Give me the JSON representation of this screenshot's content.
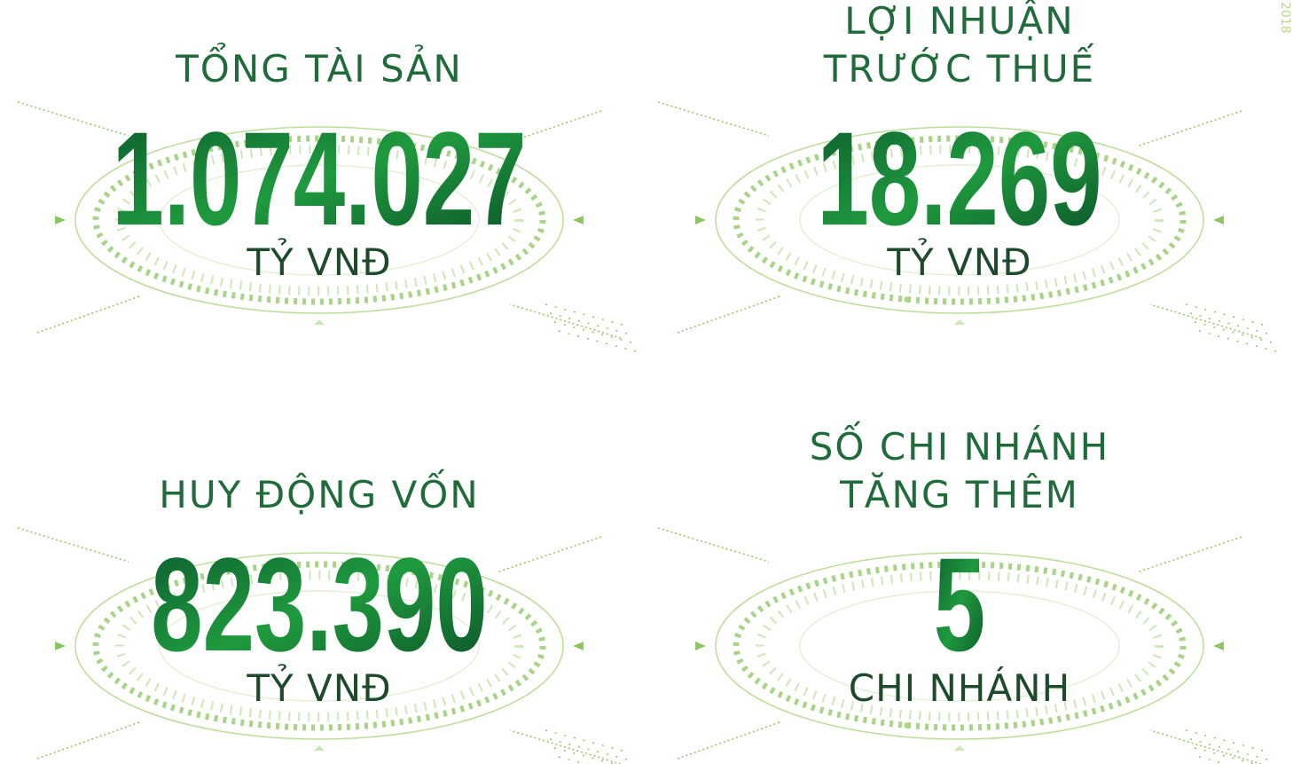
{
  "side_label": "2018",
  "panels": [
    {
      "title_lines": [
        "TỔNG TÀI SẢN"
      ],
      "value": "1.074.027",
      "unit": "TỶ VNĐ"
    },
    {
      "title_lines": [
        "LỢI NHUẬN",
        "TRƯỚC THUẾ"
      ],
      "value": "18.269",
      "unit": "TỶ VNĐ"
    },
    {
      "title_lines": [
        "HUY ĐỘNG VỐN"
      ],
      "value": "823.390",
      "unit": "TỶ VNĐ"
    },
    {
      "title_lines": [
        "SỐ CHI NHÁNH",
        "TĂNG THÊM"
      ],
      "value": "5",
      "unit": "CHI NHÁNH"
    }
  ]
}
